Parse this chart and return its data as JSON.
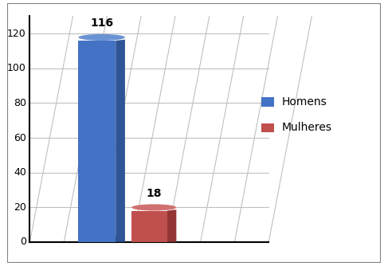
{
  "categories": [
    "Homens",
    "Mulheres"
  ],
  "values": [
    116,
    18
  ],
  "bar_color_blue": "#4472C4",
  "bar_color_blue_dark": "#2F5597",
  "bar_color_blue_top": "#6A93D4",
  "bar_color_red": "#C0504D",
  "bar_color_red_dark": "#943634",
  "bar_color_red_top": "#D07070",
  "legend_labels": [
    "Homens",
    "Mulheres"
  ],
  "ylim_max": 130,
  "yticks": [
    0,
    20,
    40,
    60,
    80,
    100,
    120
  ],
  "value_labels": [
    "116",
    "18"
  ],
  "background_color": "#ffffff",
  "label_fontsize": 10,
  "tick_fontsize": 9,
  "legend_fontsize": 10,
  "border_color": "#808080"
}
